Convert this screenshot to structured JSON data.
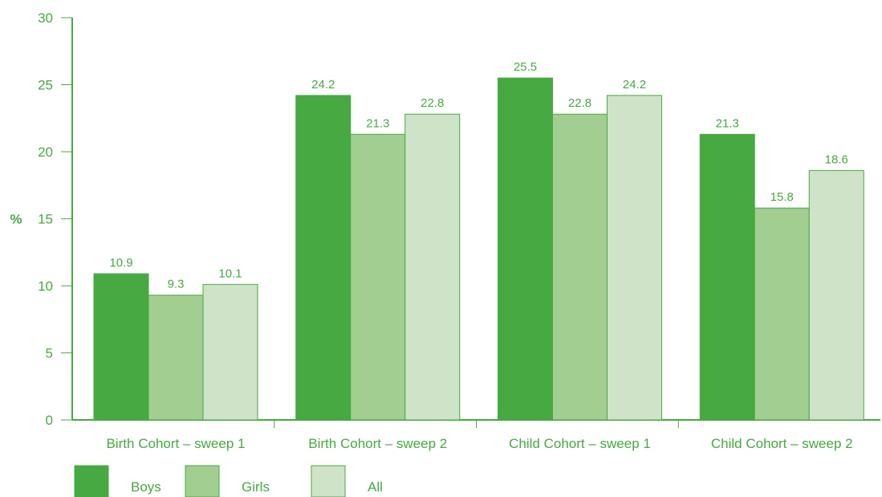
{
  "chart_data": {
    "type": "bar",
    "title": "",
    "xlabel": "",
    "ylabel": "%",
    "ylim": [
      0,
      30
    ],
    "yticks": [
      0,
      5,
      10,
      15,
      20,
      25,
      30
    ],
    "categories": [
      "Birth Cohort – sweep 1",
      "Birth Cohort – sweep 2",
      "Child Cohort – sweep 1",
      "Child Cohort –  sweep 2"
    ],
    "series": [
      {
        "name": "Boys",
        "values": [
          10.9,
          24.2,
          25.5,
          21.3
        ],
        "color": "#46a941"
      },
      {
        "name": "Girls",
        "values": [
          9.3,
          21.3,
          22.8,
          15.8
        ],
        "color": "#a2ce92"
      },
      {
        "name": "All",
        "values": [
          10.1,
          22.8,
          24.2,
          18.6
        ],
        "color": "#cfe3c8"
      }
    ],
    "value_labels": [
      [
        "10.9",
        "24.2",
        "25.5",
        "21.3"
      ],
      [
        "9.3",
        "21.3",
        "22.8",
        "15.8"
      ],
      [
        "10.1",
        "22.8",
        "24.2",
        "18.6"
      ]
    ],
    "legend_position": "bottom-left",
    "grid": false,
    "axis_color": "#46a941",
    "text_color": "#46a941",
    "bar_outline_color": "#46a941"
  }
}
